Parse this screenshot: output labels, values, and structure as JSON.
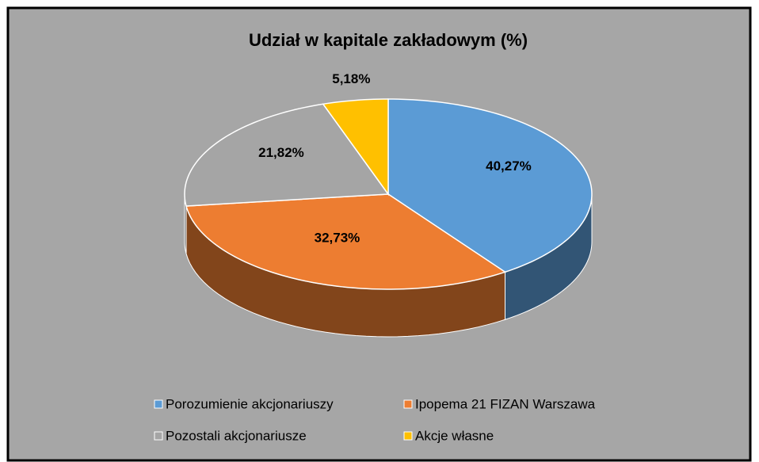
{
  "chart_data": {
    "type": "pie",
    "title": "Udział w kapitale zakładowym (%)",
    "categories": [
      "Porozumienie akcjonariuszy",
      "Ipopema 21 FIZAN Warszawa",
      "Pozostali akcjonariusze",
      "Akcje własne"
    ],
    "values": [
      40.27,
      32.73,
      21.82,
      5.18
    ],
    "value_labels": [
      "40,27%",
      "32,73%",
      "21,82%",
      "5,18%"
    ],
    "colors": [
      "#5b9bd5",
      "#ed7d31",
      "#a5a5a5",
      "#ffc000"
    ],
    "legend": "bottom"
  }
}
